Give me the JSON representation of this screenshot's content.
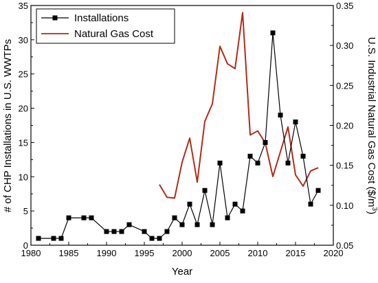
{
  "chart_data": {
    "type": "line",
    "title": "",
    "xlabel": "Year",
    "ylabel_left": "# of CHP Installations in U.S. WWTPs",
    "ylabel_right_prefix": "U.S. Industrial Natural Gas Cost ($/m",
    "ylabel_right_superscript": "3",
    "ylabel_right_suffix": ")",
    "xlim": [
      1980,
      2020
    ],
    "ylim_left": [
      0,
      35
    ],
    "ylim_right": [
      0.05,
      0.35
    ],
    "x_ticks": [
      "1980",
      "1985",
      "1990",
      "1995",
      "2000",
      "2005",
      "2010",
      "2015",
      "2020"
    ],
    "y_left_ticks": [
      "0",
      "5",
      "10",
      "15",
      "20",
      "25",
      "30",
      "35"
    ],
    "y_right_ticks": [
      "0.05",
      "0.10",
      "0.15",
      "0.20",
      "0.25",
      "0.30",
      "0.35"
    ],
    "legend_position": "top-left",
    "series": [
      {
        "name": "Installations",
        "axis": "left",
        "color": "#000000",
        "marker": "square",
        "x": [
          1981,
          1983,
          1984,
          1985,
          1987,
          1988,
          1990,
          1991,
          1992,
          1993,
          1995,
          1996,
          1997,
          1998,
          1999,
          2000,
          2001,
          2002,
          2003,
          2004,
          2005,
          2006,
          2007,
          2008,
          2009,
          2010,
          2011,
          2012,
          2013,
          2014,
          2015,
          2016,
          2017,
          2018
        ],
        "values": [
          1,
          1,
          1,
          4,
          4,
          4,
          2,
          2,
          2,
          3,
          2,
          1,
          1,
          2,
          4,
          3,
          6,
          3,
          8,
          3,
          12,
          4,
          6,
          5,
          13,
          12,
          15,
          31,
          19,
          12,
          18,
          13,
          6,
          8
        ]
      },
      {
        "name": "Natural Gas Cost",
        "axis": "right",
        "color": "#b22a16",
        "marker": "none",
        "x": [
          1997,
          1998,
          1999,
          2000,
          2001,
          2002,
          2003,
          2004,
          2005,
          2006,
          2007,
          2008,
          2009,
          2010,
          2011,
          2012,
          2013,
          2014,
          2015,
          2016,
          2017,
          2018
        ],
        "values": [
          0.126,
          0.11,
          0.109,
          0.154,
          0.184,
          0.129,
          0.205,
          0.227,
          0.299,
          0.277,
          0.271,
          0.341,
          0.188,
          0.193,
          0.178,
          0.136,
          0.167,
          0.198,
          0.138,
          0.124,
          0.143,
          0.147
        ]
      }
    ]
  }
}
